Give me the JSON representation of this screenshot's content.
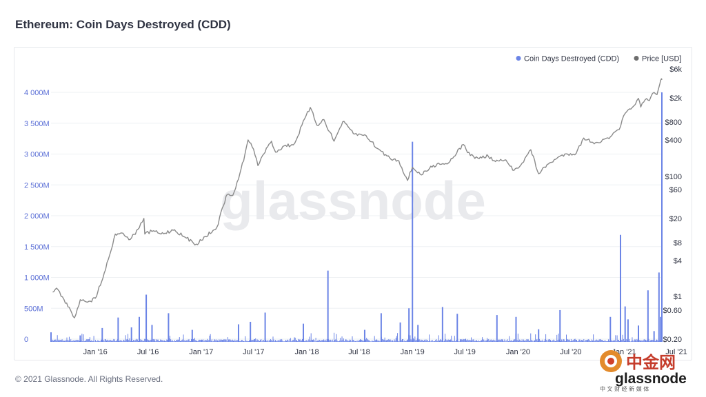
{
  "page": {
    "title": "Ethereum: Coin Days Destroyed (CDD)",
    "footer": "© 2021 Glassnode. All Rights Reserved.",
    "watermark": "glassnode",
    "corner_logo_text": "glassnode",
    "corner_logo_cjk": "中金网",
    "corner_logo_sub": "中 文 财 经 新 媒 体"
  },
  "colors": {
    "cdd": "#6b84e6",
    "price": "#8a8a8a",
    "left_axis_text": "#5b6fd6",
    "right_axis_text": "#2f3342",
    "grid": "#eef0f3"
  },
  "chart_data": {
    "type": "bar",
    "title": "Ethereum: Coin Days Destroyed (CDD)",
    "legend": {
      "placement": "top-right",
      "items": [
        "Coin Days Destroyed (CDD)",
        "Price [USD]"
      ]
    },
    "x_ticks": [
      "Jan '16",
      "Jul '16",
      "Jan '17",
      "Jul '17",
      "Jan '18",
      "Jul '18",
      "Jan '19",
      "Jul '19",
      "Jan '20",
      "Jul '20",
      "Jan '21",
      "Jul '21"
    ],
    "x_range": [
      "2015-08-01",
      "2021-05-12"
    ],
    "left_axis": {
      "ticks": [
        "0",
        "500M",
        "1 000M",
        "1 500M",
        "2 000M",
        "2 500M",
        "3 000M",
        "3 500M",
        "4 000M"
      ],
      "range": [
        0,
        4000000000
      ]
    },
    "right_axis": {
      "scale": "log",
      "ticks": [
        "$0.20",
        "$0.60",
        "$1",
        "$4",
        "$8",
        "$20",
        "$60",
        "$100",
        "$400",
        "$800",
        "$2k",
        "$6k"
      ],
      "tick_values": [
        0.2,
        0.6,
        1,
        4,
        8,
        20,
        60,
        100,
        400,
        800,
        2000,
        6000
      ],
      "range": [
        0.2,
        6000
      ]
    },
    "series": [
      {
        "name": "Coin Days Destroyed (CDD)",
        "axis": "left",
        "style": "bar",
        "spikes": [
          {
            "date": "2015-08-01",
            "value": 110000000
          },
          {
            "date": "2015-11-10",
            "value": 60000000
          },
          {
            "date": "2016-01-25",
            "value": 180000000
          },
          {
            "date": "2016-03-20",
            "value": 350000000
          },
          {
            "date": "2016-05-05",
            "value": 190000000
          },
          {
            "date": "2016-06-01",
            "value": 360000000
          },
          {
            "date": "2016-06-25",
            "value": 720000000
          },
          {
            "date": "2016-07-15",
            "value": 230000000
          },
          {
            "date": "2016-09-10",
            "value": 420000000
          },
          {
            "date": "2016-12-01",
            "value": 150000000
          },
          {
            "date": "2017-05-10",
            "value": 240000000
          },
          {
            "date": "2017-06-20",
            "value": 280000000
          },
          {
            "date": "2017-08-10",
            "value": 430000000
          },
          {
            "date": "2017-12-20",
            "value": 250000000
          },
          {
            "date": "2018-03-15",
            "value": 1110000000
          },
          {
            "date": "2018-07-20",
            "value": 150000000
          },
          {
            "date": "2018-09-15",
            "value": 420000000
          },
          {
            "date": "2018-11-20",
            "value": 270000000
          },
          {
            "date": "2018-12-20",
            "value": 500000000
          },
          {
            "date": "2019-01-01",
            "value": 3200000000
          },
          {
            "date": "2019-01-20",
            "value": 230000000
          },
          {
            "date": "2019-04-15",
            "value": 520000000
          },
          {
            "date": "2019-06-05",
            "value": 410000000
          },
          {
            "date": "2019-10-20",
            "value": 390000000
          },
          {
            "date": "2019-12-25",
            "value": 360000000
          },
          {
            "date": "2020-03-12",
            "value": 160000000
          },
          {
            "date": "2020-05-25",
            "value": 470000000
          },
          {
            "date": "2020-11-15",
            "value": 360000000
          },
          {
            "date": "2020-12-20",
            "value": 1690000000
          },
          {
            "date": "2021-01-05",
            "value": 530000000
          },
          {
            "date": "2021-01-15",
            "value": 320000000
          },
          {
            "date": "2021-02-20",
            "value": 220000000
          },
          {
            "date": "2021-03-25",
            "value": 790000000
          },
          {
            "date": "2021-04-15",
            "value": 130000000
          },
          {
            "date": "2021-05-02",
            "value": 1080000000
          },
          {
            "date": "2021-05-08",
            "value": 360000000
          },
          {
            "date": "2021-05-12",
            "value": 4000000000
          }
        ]
      },
      {
        "name": "Price [USD]",
        "axis": "right",
        "style": "line",
        "points": [
          {
            "date": "2015-08-07",
            "value": 1.2
          },
          {
            "date": "2015-08-20",
            "value": 1.4
          },
          {
            "date": "2015-09-15",
            "value": 0.9
          },
          {
            "date": "2015-10-21",
            "value": 0.45
          },
          {
            "date": "2015-11-10",
            "value": 0.9
          },
          {
            "date": "2015-12-15",
            "value": 0.85
          },
          {
            "date": "2016-01-01",
            "value": 0.95
          },
          {
            "date": "2016-02-01",
            "value": 2.5
          },
          {
            "date": "2016-02-20",
            "value": 5
          },
          {
            "date": "2016-03-10",
            "value": 11
          },
          {
            "date": "2016-04-01",
            "value": 11.5
          },
          {
            "date": "2016-05-01",
            "value": 9
          },
          {
            "date": "2016-06-01",
            "value": 14
          },
          {
            "date": "2016-06-17",
            "value": 20
          },
          {
            "date": "2016-06-20",
            "value": 11
          },
          {
            "date": "2016-07-20",
            "value": 12.5
          },
          {
            "date": "2016-08-15",
            "value": 11
          },
          {
            "date": "2016-10-01",
            "value": 13
          },
          {
            "date": "2016-11-01",
            "value": 10
          },
          {
            "date": "2016-12-15",
            "value": 7.5
          },
          {
            "date": "2017-01-15",
            "value": 10
          },
          {
            "date": "2017-02-15",
            "value": 13
          },
          {
            "date": "2017-03-01",
            "value": 16
          },
          {
            "date": "2017-03-15",
            "value": 30
          },
          {
            "date": "2017-04-01",
            "value": 50
          },
          {
            "date": "2017-04-20",
            "value": 48
          },
          {
            "date": "2017-05-10",
            "value": 90
          },
          {
            "date": "2017-06-01",
            "value": 230
          },
          {
            "date": "2017-06-12",
            "value": 400
          },
          {
            "date": "2017-07-01",
            "value": 280
          },
          {
            "date": "2017-07-16",
            "value": 150
          },
          {
            "date": "2017-08-01",
            "value": 220
          },
          {
            "date": "2017-09-01",
            "value": 380
          },
          {
            "date": "2017-09-15",
            "value": 250
          },
          {
            "date": "2017-10-15",
            "value": 320
          },
          {
            "date": "2017-11-15",
            "value": 330
          },
          {
            "date": "2017-12-01",
            "value": 460
          },
          {
            "date": "2017-12-15",
            "value": 700
          },
          {
            "date": "2018-01-13",
            "value": 1380
          },
          {
            "date": "2018-02-05",
            "value": 700
          },
          {
            "date": "2018-03-01",
            "value": 870
          },
          {
            "date": "2018-04-05",
            "value": 380
          },
          {
            "date": "2018-05-05",
            "value": 800
          },
          {
            "date": "2018-06-15",
            "value": 500
          },
          {
            "date": "2018-07-25",
            "value": 470
          },
          {
            "date": "2018-09-01",
            "value": 290
          },
          {
            "date": "2018-10-15",
            "value": 200
          },
          {
            "date": "2018-11-15",
            "value": 180
          },
          {
            "date": "2018-12-15",
            "value": 85
          },
          {
            "date": "2019-01-01",
            "value": 140
          },
          {
            "date": "2019-02-01",
            "value": 105
          },
          {
            "date": "2019-03-01",
            "value": 135
          },
          {
            "date": "2019-04-01",
            "value": 165
          },
          {
            "date": "2019-05-01",
            "value": 160
          },
          {
            "date": "2019-06-26",
            "value": 335
          },
          {
            "date": "2019-07-20",
            "value": 220
          },
          {
            "date": "2019-08-15",
            "value": 200
          },
          {
            "date": "2019-09-20",
            "value": 215
          },
          {
            "date": "2019-10-15",
            "value": 175
          },
          {
            "date": "2019-11-15",
            "value": 185
          },
          {
            "date": "2019-12-18",
            "value": 125
          },
          {
            "date": "2020-01-15",
            "value": 165
          },
          {
            "date": "2020-02-14",
            "value": 275
          },
          {
            "date": "2020-03-12",
            "value": 110
          },
          {
            "date": "2020-04-15",
            "value": 160
          },
          {
            "date": "2020-05-15",
            "value": 200
          },
          {
            "date": "2020-06-15",
            "value": 235
          },
          {
            "date": "2020-07-20",
            "value": 240
          },
          {
            "date": "2020-08-15",
            "value": 430
          },
          {
            "date": "2020-09-15",
            "value": 365
          },
          {
            "date": "2020-10-15",
            "value": 375
          },
          {
            "date": "2020-11-15",
            "value": 450
          },
          {
            "date": "2020-12-15",
            "value": 590
          },
          {
            "date": "2021-01-05",
            "value": 1100
          },
          {
            "date": "2021-01-25",
            "value": 1300
          },
          {
            "date": "2021-02-20",
            "value": 1950
          },
          {
            "date": "2021-02-28",
            "value": 1400
          },
          {
            "date": "2021-03-15",
            "value": 1850
          },
          {
            "date": "2021-03-30",
            "value": 1800
          },
          {
            "date": "2021-04-15",
            "value": 2450
          },
          {
            "date": "2021-04-25",
            "value": 2250
          },
          {
            "date": "2021-05-05",
            "value": 3400
          },
          {
            "date": "2021-05-10",
            "value": 4100
          },
          {
            "date": "2021-05-12",
            "value": 3950
          }
        ]
      }
    ]
  }
}
